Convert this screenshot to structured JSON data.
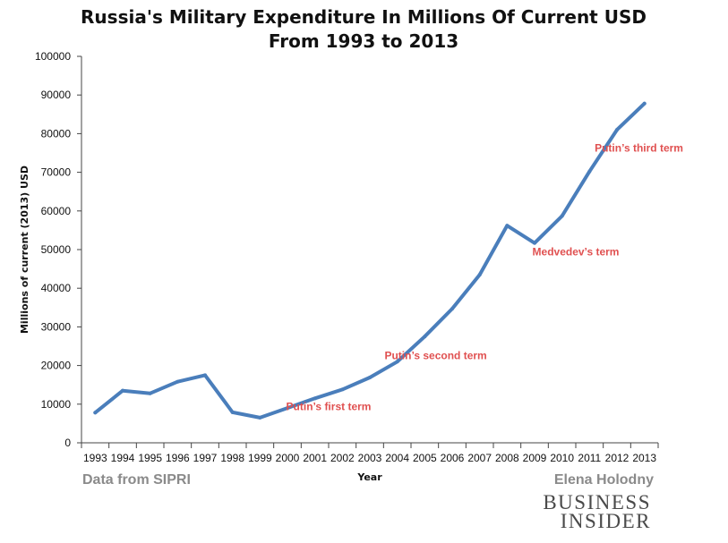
{
  "chart_data": {
    "type": "line",
    "title": [
      "Russia's Military Expenditure In Millions Of Current USD",
      "From 1993 to 2013"
    ],
    "xlabel": "Year",
    "ylabel": "Millions of current (2013) USD",
    "ylim": [
      0,
      100000
    ],
    "yticks": [
      0,
      10000,
      20000,
      30000,
      40000,
      50000,
      60000,
      70000,
      80000,
      90000,
      100000
    ],
    "yticklabels": [
      "0",
      "10000",
      "20000",
      "30000",
      "40000",
      "50000",
      "60000",
      "70000",
      "80000",
      "90000",
      "100000"
    ],
    "grid": false,
    "categories": [
      "1993",
      "1994",
      "1995",
      "1996",
      "1997",
      "1998",
      "1999",
      "2000",
      "2001",
      "2002",
      "2003",
      "2004",
      "2005",
      "2006",
      "2007",
      "2008",
      "2009",
      "2010",
      "2011",
      "2012",
      "2013"
    ],
    "series": [
      {
        "name": "Military expenditure",
        "color": "#4a7ebb",
        "values": [
          7800,
          13500,
          12800,
          15800,
          17500,
          7900,
          6500,
          9000,
          11500,
          13800,
          16900,
          21000,
          27500,
          34700,
          43500,
          56200,
          51700,
          58700,
          70200,
          81000,
          87800
        ]
      }
    ],
    "annotations": [
      {
        "text": "Putin’s first term",
        "x": "2001.5",
        "y": 8400,
        "color": "#e05050"
      },
      {
        "text": "Putin’s second term",
        "x": "2005.4",
        "y": 21600,
        "color": "#e05050"
      },
      {
        "text": "Medvedev’s term",
        "x": "2010.5",
        "y": 48500,
        "color": "#e05050"
      },
      {
        "text": "Putin’s third term",
        "x": "2012.8",
        "y": 75400,
        "color": "#e05050"
      }
    ]
  },
  "footer": {
    "source": "Data from SIPRI",
    "author": "Elena Holodny",
    "brand_line1": "BUSINESS",
    "brand_line2": "INSIDER"
  }
}
